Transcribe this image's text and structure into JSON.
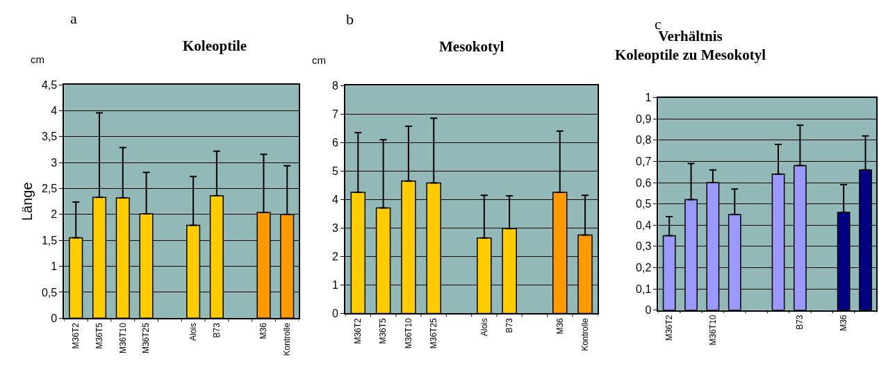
{
  "chart_data": [
    {
      "type": "bar",
      "title": "Koleoptile",
      "ylabel": "Länge",
      "annotations": [
        "a",
        "cm"
      ],
      "categories": [
        "M36T2",
        "M36T5",
        "M36T10",
        "M36T25",
        null,
        "Alois",
        "B73",
        null,
        "M36",
        "Kontrolle"
      ],
      "values": [
        1.55,
        2.33,
        2.32,
        2.01,
        null,
        1.79,
        2.36,
        null,
        2.04,
        2.0
      ],
      "colors": [
        "#ffcc00",
        "#ffcc00",
        "#ffcc00",
        "#ffcc00",
        null,
        "#ffcc00",
        "#ffcc00",
        null,
        "#ff9900",
        "#ff9900"
      ],
      "errors": [
        [
          1.55,
          2.24
        ],
        [
          2.33,
          3.96
        ],
        [
          2.32,
          3.29
        ],
        [
          2.01,
          2.81
        ],
        null,
        [
          1.79,
          2.73
        ],
        [
          2.36,
          3.22
        ],
        null,
        [
          2.04,
          3.16
        ],
        [
          2.0,
          2.94
        ]
      ],
      "ylim": [
        0,
        4.5
      ],
      "yticks": [
        0,
        {
          "value": 0.5,
          "label": "0,5"
        },
        1,
        {
          "value": 1.5,
          "label": "1,5"
        },
        2,
        {
          "value": 2.5,
          "label": "2,5"
        },
        3,
        {
          "value": 3.5,
          "label": "3,5"
        },
        4,
        {
          "value": 4.5,
          "label": "4,5"
        }
      ],
      "grid": "y",
      "legend": false
    },
    {
      "type": "bar",
      "title": "Mesokotyl",
      "annotations": [
        "b",
        "cm"
      ],
      "categories": [
        "M36T2",
        "M36T5",
        "M36T10",
        "M36T25",
        null,
        "Alois",
        "B73",
        null,
        "M36",
        "Kontrolle"
      ],
      "values": [
        4.25,
        3.7,
        4.65,
        4.58,
        null,
        2.65,
        2.98,
        null,
        4.25,
        2.75
      ],
      "colors": [
        "#ffcc00",
        "#ffcc00",
        "#ffcc00",
        "#ffcc00",
        null,
        "#ffcc00",
        "#ffcc00",
        null,
        "#ff9900",
        "#ff9900"
      ],
      "errors": [
        [
          4.25,
          6.35
        ],
        [
          3.7,
          6.1
        ],
        [
          4.65,
          6.57
        ],
        [
          4.58,
          6.85
        ],
        null,
        [
          2.65,
          4.15
        ],
        [
          2.98,
          4.13
        ],
        null,
        [
          4.25,
          6.4
        ],
        [
          2.75,
          4.15
        ]
      ],
      "ylim": [
        0,
        8
      ],
      "yticks": [
        0,
        1,
        2,
        3,
        4,
        5,
        6,
        7,
        8
      ],
      "grid": "y",
      "legend": false
    },
    {
      "type": "bar",
      "title": "Verhältnis\nKoleoptile zu Mesokotyl",
      "annotations": [
        "c"
      ],
      "categories": [
        "M36T2",
        null,
        "M36T10",
        null,
        null,
        null,
        "B73",
        null,
        "M36",
        null
      ],
      "values": [
        0.35,
        0.52,
        0.6,
        0.45,
        null,
        0.64,
        0.68,
        null,
        0.46,
        0.66
      ],
      "colors": [
        "#9999ff",
        "#9999ff",
        "#9999ff",
        "#9999ff",
        null,
        "#9999ff",
        "#9999ff",
        null,
        "#000080",
        "#000080"
      ],
      "errors": [
        [
          0.35,
          0.44
        ],
        [
          0.52,
          0.69
        ],
        [
          0.6,
          0.66
        ],
        [
          0.45,
          0.57
        ],
        null,
        [
          0.64,
          0.78
        ],
        [
          0.68,
          0.87
        ],
        null,
        [
          0.46,
          0.59
        ],
        [
          0.66,
          0.82
        ]
      ],
      "ylim": [
        0,
        1
      ],
      "yticks": [
        0,
        {
          "value": 0.1,
          "label": "0,1"
        },
        {
          "value": 0.2,
          "label": "0,2"
        },
        {
          "value": 0.3,
          "label": "0,3"
        },
        {
          "value": 0.4,
          "label": "0,4"
        },
        {
          "value": 0.5,
          "label": "0,5"
        },
        {
          "value": 0.6,
          "label": "0,6"
        },
        {
          "value": 0.7,
          "label": "0,7"
        },
        {
          "value": 0.8,
          "label": "0,8"
        },
        {
          "value": 0.9,
          "label": "0,9"
        },
        1
      ],
      "grid": "y",
      "legend": false
    }
  ]
}
